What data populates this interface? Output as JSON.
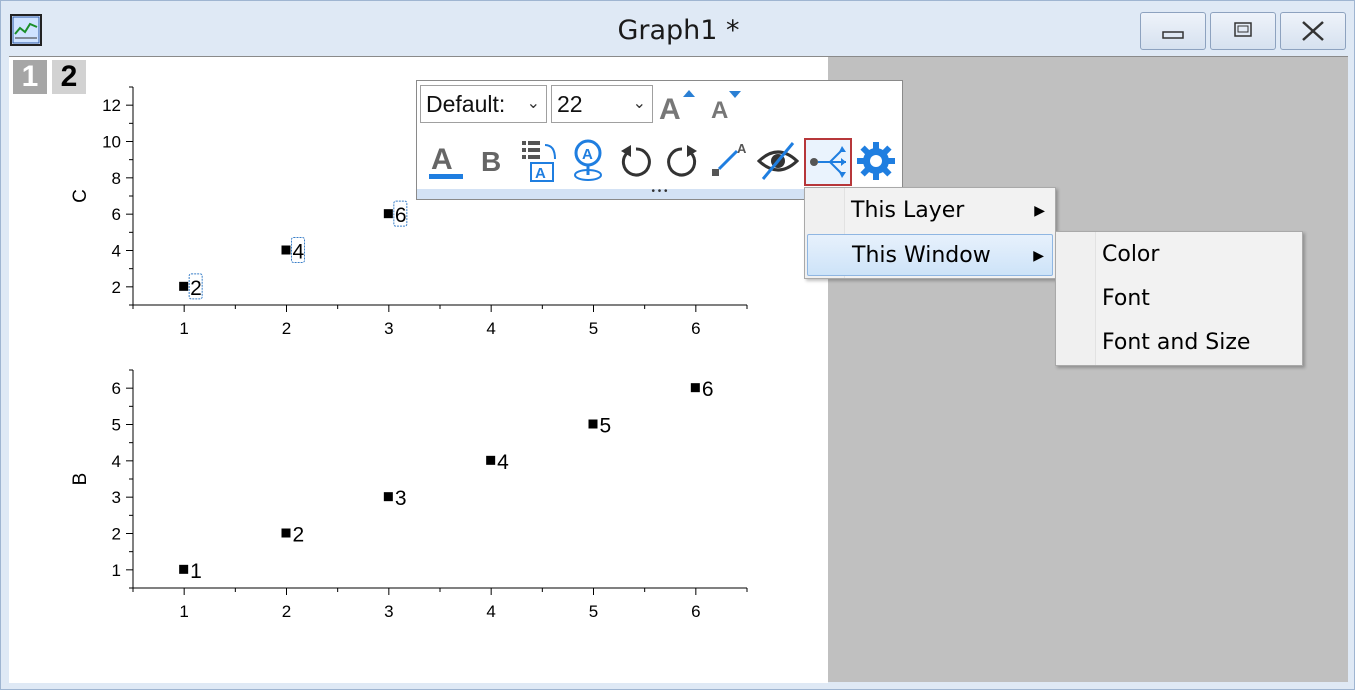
{
  "window": {
    "title": "Graph1 *",
    "app_icon": "origin-graph-icon",
    "controls": [
      "minimize-icon",
      "restore-icon",
      "close-icon"
    ]
  },
  "layer_tabs": [
    "1",
    "2"
  ],
  "mini_toolbar": {
    "font_value": "Default:",
    "size_value": "22",
    "buttons": [
      "increase-font-icon",
      "decrease-font-icon",
      "font-color-icon",
      "bold-icon",
      "label-from-column-icon",
      "label-position-icon",
      "rotate-ccw-icon",
      "rotate-cw-icon",
      "connect-line-icon",
      "hide-icon",
      "apply-format-icon",
      "settings-icon"
    ]
  },
  "context_menu": {
    "items": [
      "This Layer",
      "This Window"
    ],
    "highlighted": "This Window",
    "submenu": [
      "Color",
      "Font",
      "Font and Size"
    ]
  },
  "chart_data": [
    {
      "type": "scatter",
      "ylabel": "C",
      "x": [
        1,
        2,
        3
      ],
      "y": [
        2,
        4,
        6
      ],
      "point_labels": [
        "2",
        "4",
        "6"
      ],
      "xticks": [
        "1",
        "2",
        "3",
        "4",
        "5",
        "6"
      ],
      "yticks": [
        "2",
        "4",
        "6",
        "8",
        "10",
        "12"
      ],
      "xlim": [
        0.5,
        6.5
      ],
      "ylim": [
        1,
        13
      ]
    },
    {
      "type": "scatter",
      "ylabel": "B",
      "x": [
        1,
        2,
        3,
        4,
        5,
        6
      ],
      "y": [
        1,
        2,
        3,
        4,
        5,
        6
      ],
      "point_labels": [
        "1",
        "2",
        "3",
        "4",
        "5",
        "6"
      ],
      "xticks": [
        "1",
        "2",
        "3",
        "4",
        "5",
        "6"
      ],
      "yticks": [
        "1",
        "2",
        "3",
        "4",
        "5",
        "6"
      ],
      "xlim": [
        0.5,
        6.5
      ],
      "ylim": [
        0.5,
        6.5
      ]
    }
  ]
}
